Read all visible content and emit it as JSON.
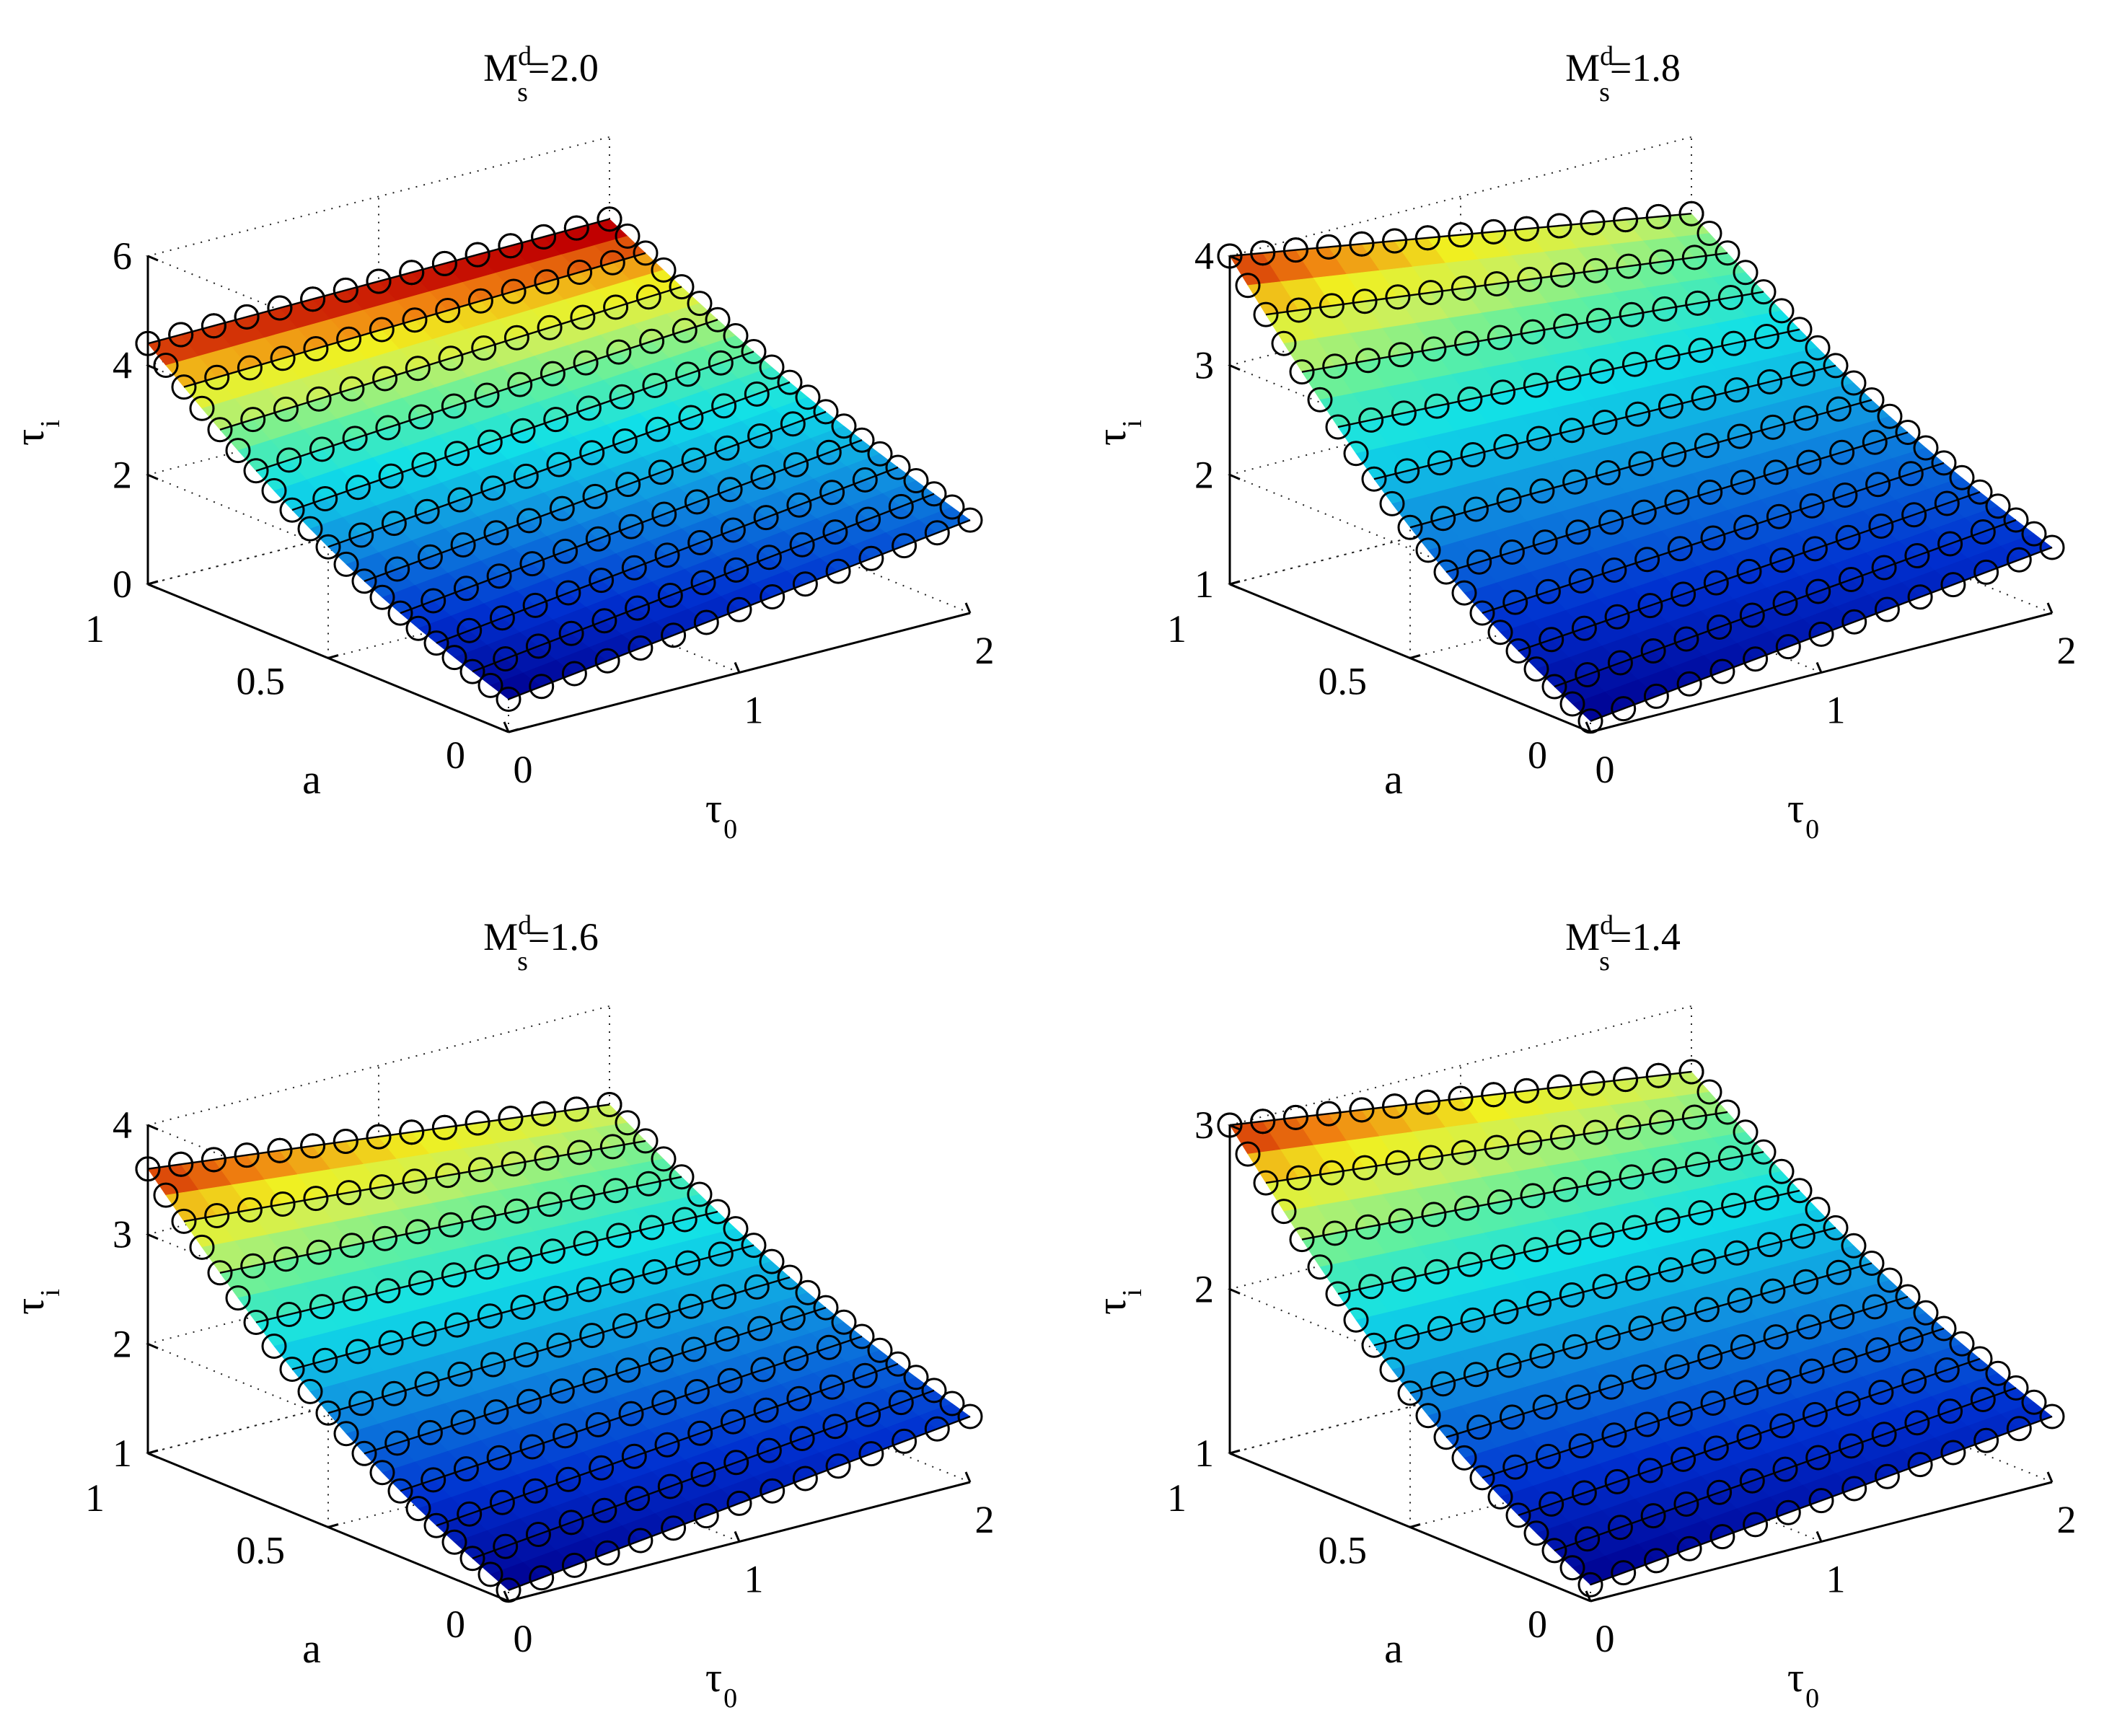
{
  "chart_data": [
    {
      "type": "surface",
      "title": {
        "base": "M",
        "sup": "d",
        "sub": "s",
        "value": "=2.0"
      },
      "xlabel": {
        "base": "τ",
        "sub": "0"
      },
      "ylabel": "a",
      "zlabel": {
        "base": "τ",
        "sub": "i"
      },
      "xlim": [
        0,
        2
      ],
      "ylim": [
        0,
        1
      ],
      "zlim": [
        0,
        6
      ],
      "xticks": [
        "0",
        "1",
        "2"
      ],
      "yticks": [
        "0",
        "0.5",
        "1"
      ],
      "zticks": [
        "0",
        "2",
        "4",
        "6"
      ],
      "grid": true,
      "colormap": "jet",
      "markers": "circle",
      "sample_values": {
        "a=1,tau0=0": 4.4,
        "a=0,tau0=0": 0.6,
        "a=1,tau0=2": 4.5,
        "a=0,tau0=2": 1.7
      }
    },
    {
      "type": "surface",
      "title": {
        "base": "M",
        "sup": "d",
        "sub": "s",
        "value": "=1.8"
      },
      "xlabel": {
        "base": "τ",
        "sub": "0"
      },
      "ylabel": "a",
      "zlabel": {
        "base": "τ",
        "sub": "i"
      },
      "xlim": [
        0,
        2
      ],
      "ylim": [
        0,
        1
      ],
      "zlim": [
        1,
        4
      ],
      "xticks": [
        "0",
        "1",
        "2"
      ],
      "yticks": [
        "0",
        "0.5",
        "1"
      ],
      "zticks": [
        "1",
        "2",
        "3",
        "4"
      ],
      "grid": true,
      "colormap": "jet",
      "markers": "circle",
      "sample_values": {
        "a=1,tau0=0": 4.0,
        "a=0,tau0=0": 1.1,
        "a=1,tau0=2": 3.3,
        "a=0,tau0=2": 1.6
      }
    },
    {
      "type": "surface",
      "title": {
        "base": "M",
        "sup": "d",
        "sub": "s",
        "value": "=1.6"
      },
      "xlabel": {
        "base": "τ",
        "sub": "0"
      },
      "ylabel": "a",
      "zlabel": {
        "base": "τ",
        "sub": "i"
      },
      "xlim": [
        0,
        2
      ],
      "ylim": [
        0,
        1
      ],
      "zlim": [
        1,
        4
      ],
      "xticks": [
        "0",
        "1",
        "2"
      ],
      "yticks": [
        "0",
        "0.5",
        "1"
      ],
      "zticks": [
        "1",
        "2",
        "3",
        "4"
      ],
      "grid": true,
      "colormap": "jet",
      "markers": "circle",
      "sample_values": {
        "a=1,tau0=0": 3.6,
        "a=0,tau0=0": 1.1,
        "a=1,tau0=2": 3.1,
        "a=0,tau0=2": 1.6
      }
    },
    {
      "type": "surface",
      "title": {
        "base": "M",
        "sup": "d",
        "sub": "s",
        "value": "=1.4"
      },
      "xlabel": {
        "base": "τ",
        "sub": "0"
      },
      "ylabel": "a",
      "zlabel": {
        "base": "τ",
        "sub": "i"
      },
      "xlim": [
        0,
        2
      ],
      "ylim": [
        0,
        1
      ],
      "zlim": [
        1,
        3
      ],
      "xticks": [
        "0",
        "1",
        "2"
      ],
      "yticks": [
        "0",
        "0.5",
        "1"
      ],
      "zticks": [
        "1",
        "2",
        "3"
      ],
      "grid": true,
      "colormap": "jet",
      "markers": "circle",
      "sample_values": {
        "a=1,tau0=0": 3.0,
        "a=0,tau0=0": 1.1,
        "a=1,tau0=2": 2.6,
        "a=0,tau0=2": 1.4
      }
    }
  ]
}
